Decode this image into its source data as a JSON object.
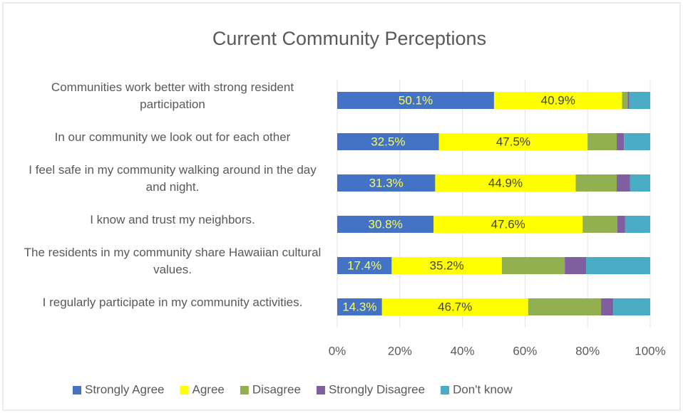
{
  "chart_data": {
    "type": "stacked_barh",
    "title": "Current Community Perceptions",
    "categories": [
      "Communities work better with strong resident participation",
      "In our community we look out for each other",
      "I feel safe in my community walking around in the day and night.",
      "I know and trust my neighbors.",
      "The residents in my community share Hawaiian cultural values.",
      "I regularly participate in my community activities."
    ],
    "series": [
      {
        "name": "Strongly Agree",
        "color": "#4472c4",
        "values": [
          50.1,
          32.5,
          31.3,
          30.8,
          17.4,
          14.3
        ],
        "value_labels": [
          "50.1%",
          "32.5%",
          "31.3%",
          "30.8%",
          "17.4%",
          "14.3%"
        ]
      },
      {
        "name": "Agree",
        "color": "#ffff00",
        "values": [
          40.9,
          47.5,
          44.9,
          47.6,
          35.2,
          46.7
        ],
        "value_labels": [
          "40.9%",
          "47.5%",
          "44.9%",
          "47.6%",
          "35.2%",
          "46.7%"
        ]
      },
      {
        "name": "Disagree",
        "color": "#92b050",
        "values": [
          1.8,
          9.3,
          13.1,
          11.1,
          20.1,
          23.3
        ]
      },
      {
        "name": "Strongly Disagree",
        "color": "#7f5f9f",
        "values": [
          0.5,
          2.3,
          4.3,
          2.5,
          6.8,
          3.9
        ]
      },
      {
        "name": "Don't know",
        "color": "#4bacc6",
        "values": [
          6.7,
          8.4,
          6.4,
          8.0,
          20.5,
          11.8
        ]
      }
    ],
    "xlim": [
      0,
      100
    ],
    "xticks": [
      {
        "value": 0,
        "label": "0%"
      },
      {
        "value": 20,
        "label": "20%"
      },
      {
        "value": 40,
        "label": "40%"
      },
      {
        "value": 60,
        "label": "60%"
      },
      {
        "value": 80,
        "label": "80%"
      },
      {
        "value": 100,
        "label": "100%"
      }
    ],
    "grid": true,
    "legend": "bottom"
  }
}
